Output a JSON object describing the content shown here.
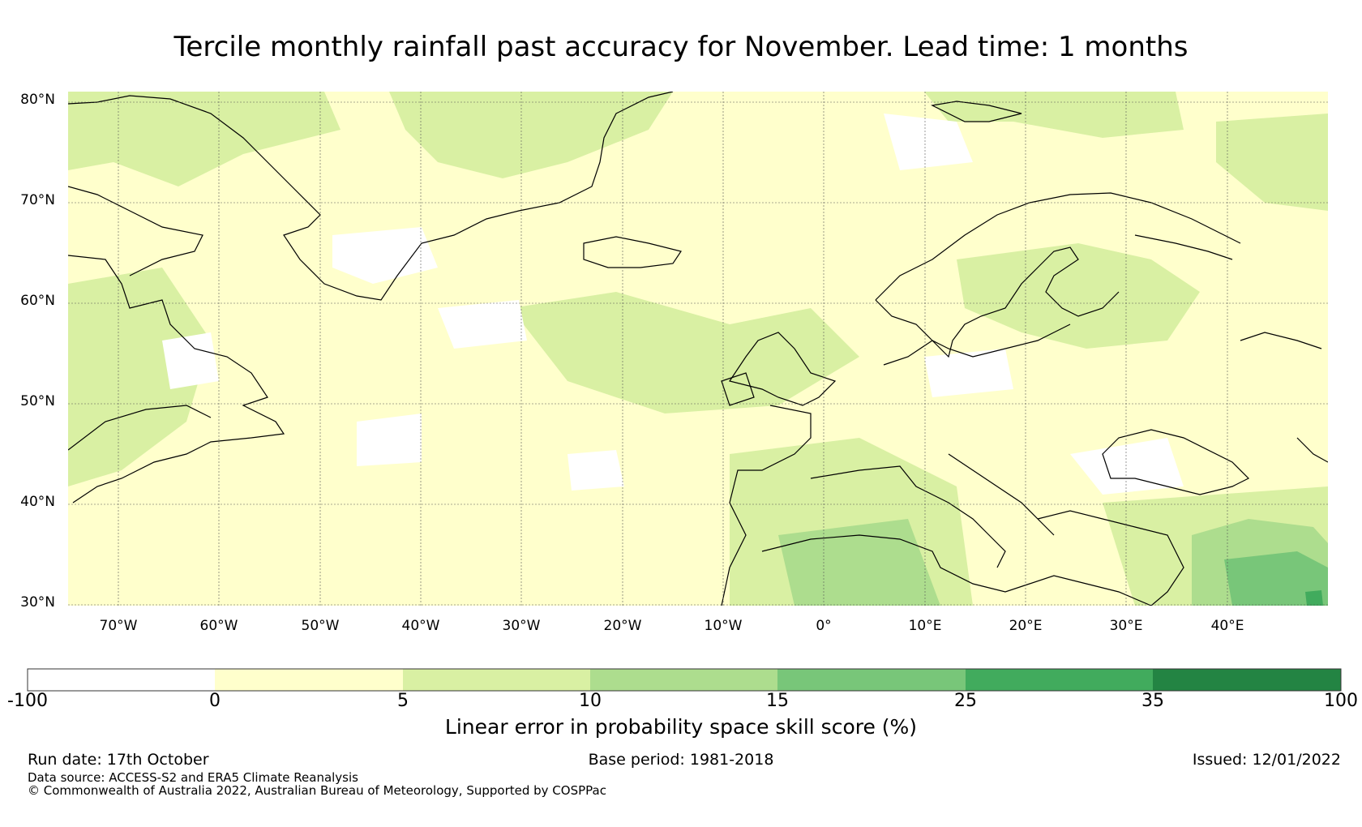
{
  "title": "Tercile monthly rainfall past accuracy for November. Lead time: 1 months",
  "map": {
    "lat_labels": [
      "80°N",
      "70°N",
      "60°N",
      "50°N",
      "40°N",
      "30°N"
    ],
    "lon_labels": [
      "70°W",
      "60°W",
      "50°W",
      "40°W",
      "30°W",
      "20°W",
      "10°W",
      "0°",
      "10°E",
      "20°E",
      "30°E",
      "40°E"
    ],
    "lat_range": [
      30,
      81
    ],
    "lon_range": [
      -75,
      50
    ]
  },
  "colorbar": {
    "ticks": [
      "-100",
      "0",
      "5",
      "10",
      "15",
      "25",
      "35",
      "100"
    ],
    "colors": [
      "#ffffff",
      "#ffffcc",
      "#d9f0a3",
      "#addd8e",
      "#78c679",
      "#41ab5d",
      "#238443"
    ],
    "label": "Linear error in probability space skill score (%)"
  },
  "footer": {
    "run_date": "Run date: 17th October",
    "base_period": "Base period: 1981-2018",
    "issued": "Issued: 12/01/2022",
    "data_source": "Data source: ACCESS-S2 and ERA5 Climate Reanalysis",
    "copyright": "© Commonwealth of Australia 2022, Australian Bureau of Meteorology, Supported by COSPPac"
  }
}
